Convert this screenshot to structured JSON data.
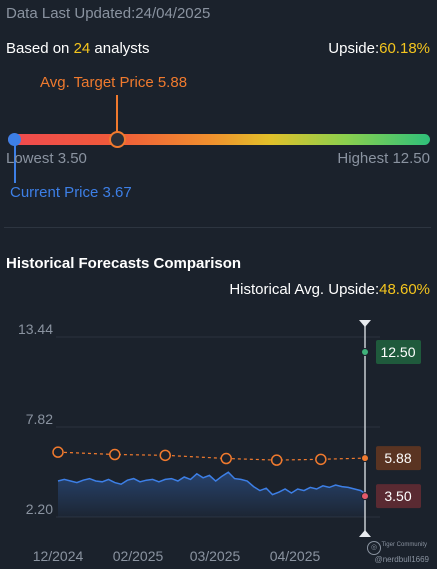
{
  "header": {
    "updated_label": "Data Last Updated:",
    "updated_date": "24/04/2025",
    "based_on_prefix": "Based on ",
    "analyst_count": "24",
    "based_on_suffix": " analysts",
    "upside_label": "Upside:",
    "upside_value": "60.18%"
  },
  "range": {
    "avg_target_label": "Avg. Target Price 5.88",
    "lowest_label": "Lowest 3.50",
    "highest_label": "Highest 12.50",
    "current_label": "Current Price 3.67",
    "low": 3.5,
    "high": 12.5,
    "avg_target": 5.88,
    "current": 3.67
  },
  "history": {
    "title": "Historical Forecasts Comparison",
    "avg_upside_label": "Historical Avg. Upside:",
    "avg_upside_value": "48.60%"
  },
  "watermark": {
    "brand": "Tiger Community",
    "user": "@nerdbull1669"
  },
  "colors": {
    "background": "#1b222c",
    "price_line": "#3d7fe6",
    "target_line": "#f07a2e",
    "highlight": "#f4c51e",
    "high_badge": "#1f5a3c",
    "avg_badge": "#5a3422",
    "low_badge": "#5a2a32"
  },
  "chart_data": {
    "type": "line",
    "y_ticks": [
      13.44,
      7.82,
      2.2
    ],
    "y_tick_labels": [
      "13.44",
      "7.82",
      "2.20"
    ],
    "ylim": [
      2.2,
      13.44
    ],
    "x_tick_labels": [
      "12/2024",
      "02/2025",
      "03/2025",
      "04/2025"
    ],
    "grid": true,
    "series": [
      {
        "style": "area",
        "points": [
          [
            0,
            4.45
          ],
          [
            3,
            4.55
          ],
          [
            6,
            4.45
          ],
          [
            9,
            4.35
          ],
          [
            12,
            4.5
          ],
          [
            15,
            4.6
          ],
          [
            18,
            4.45
          ],
          [
            21,
            4.4
          ],
          [
            24,
            4.55
          ],
          [
            27,
            4.35
          ],
          [
            30,
            4.25
          ],
          [
            33,
            4.5
          ],
          [
            36,
            4.6
          ],
          [
            39,
            4.4
          ],
          [
            42,
            4.5
          ],
          [
            45,
            4.55
          ],
          [
            48,
            4.4
          ],
          [
            51,
            4.55
          ],
          [
            54,
            4.6
          ],
          [
            57,
            4.45
          ],
          [
            60,
            4.7
          ],
          [
            63,
            4.55
          ],
          [
            66,
            4.9
          ],
          [
            69,
            4.65
          ],
          [
            72,
            4.8
          ],
          [
            75,
            4.45
          ],
          [
            78,
            4.75
          ],
          [
            81,
            5.0
          ],
          [
            84,
            4.6
          ],
          [
            87,
            4.55
          ],
          [
            90,
            4.45
          ],
          [
            93,
            4.1
          ],
          [
            96,
            3.85
          ],
          [
            99,
            4.0
          ],
          [
            102,
            3.6
          ],
          [
            105,
            3.75
          ],
          [
            108,
            3.95
          ],
          [
            111,
            3.7
          ],
          [
            114,
            3.95
          ],
          [
            117,
            3.85
          ],
          [
            120,
            4.05
          ],
          [
            123,
            3.95
          ],
          [
            126,
            4.15
          ],
          [
            129,
            4.05
          ],
          [
            132,
            4.2
          ],
          [
            135,
            4.1
          ],
          [
            138,
            4.05
          ],
          [
            141,
            3.95
          ],
          [
            144,
            3.85
          ],
          [
            146,
            3.67
          ]
        ]
      },
      {
        "style": "dashed",
        "points": [
          [
            0,
            6.25
          ],
          [
            27,
            6.1
          ],
          [
            51,
            6.05
          ],
          [
            80,
            5.85
          ],
          [
            104,
            5.75
          ],
          [
            125,
            5.8
          ],
          [
            146,
            5.88
          ]
        ]
      }
    ],
    "markers": [
      {
        "value": 12.5,
        "label": "12.50"
      },
      {
        "value": 5.88,
        "label": "5.88"
      },
      {
        "value": 3.5,
        "label": "3.50"
      }
    ]
  }
}
